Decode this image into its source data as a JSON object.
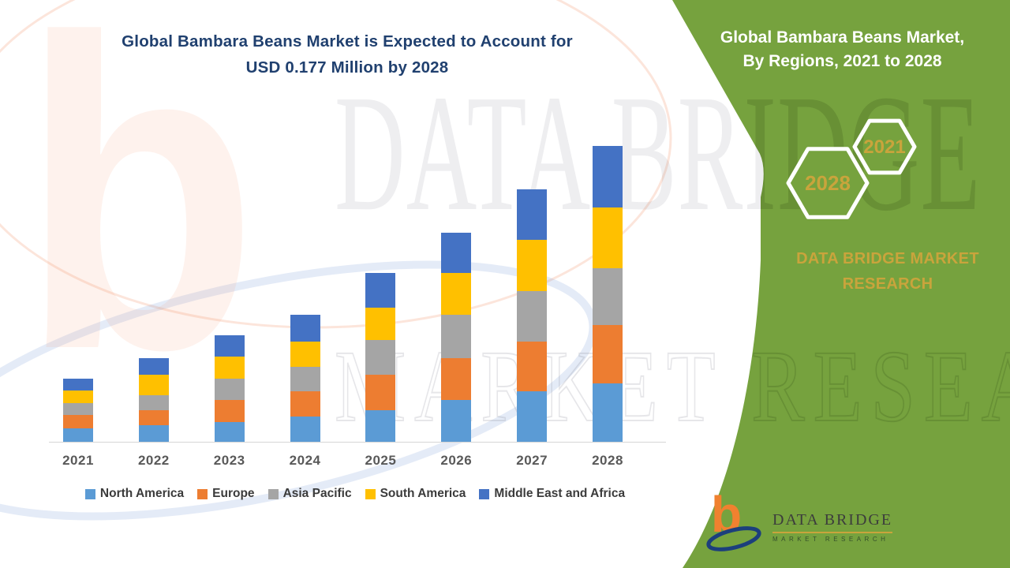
{
  "header": {
    "title_line1": "Global Bambara Beans Market is Expected to Account for",
    "title_line2": "USD 0.177 Million by 2028",
    "title_color": "#20406F"
  },
  "panel": {
    "title_line1": "Global Bambara Beans Market,",
    "title_line2": "By Regions, 2021 to 2028",
    "hexagon_top_label": "2021",
    "hexagon_bottom_label": "2028",
    "brand_line1": "DATA BRIDGE MARKET",
    "brand_line2": "RESEARCH",
    "background_color": "#76A23E",
    "accent_gold": "#C9A43C"
  },
  "chart_data": {
    "type": "bar",
    "stacked": true,
    "title": "Global Bambara Beans Market is Expected to Account for USD 0.177 Million by 2028",
    "unit": "USD Million",
    "categories": [
      "2021",
      "2022",
      "2023",
      "2024",
      "2025",
      "2026",
      "2027",
      "2028"
    ],
    "series": [
      {
        "name": "North America",
        "color": "#5B9BD5",
        "values": [
          0.008,
          0.01,
          0.012,
          0.015,
          0.019,
          0.025,
          0.03,
          0.035
        ]
      },
      {
        "name": "Europe",
        "color": "#ED7D31",
        "values": [
          0.008,
          0.009,
          0.013,
          0.015,
          0.021,
          0.025,
          0.03,
          0.035
        ]
      },
      {
        "name": "Asia Pacific",
        "color": "#A5A5A5",
        "values": [
          0.007,
          0.009,
          0.013,
          0.015,
          0.021,
          0.026,
          0.03,
          0.034
        ]
      },
      {
        "name": "South America",
        "color": "#FFC000",
        "values": [
          0.008,
          0.012,
          0.013,
          0.015,
          0.019,
          0.025,
          0.031,
          0.036
        ]
      },
      {
        "name": "Middle East and Africa",
        "color": "#4472C4",
        "values": [
          0.007,
          0.01,
          0.013,
          0.016,
          0.021,
          0.024,
          0.03,
          0.037
        ]
      }
    ],
    "totals_by_year": [
      0.038,
      0.05,
      0.064,
      0.076,
      0.101,
      0.125,
      0.151,
      0.177
    ],
    "ylim": [
      0,
      0.177
    ],
    "y_axis_visible": false,
    "gridlines": false,
    "legend_position": "bottom",
    "xlabel": "",
    "ylabel": ""
  },
  "logo": {
    "monogram": "b",
    "name": "DATA BRIDGE",
    "tagline": "MARKET RESEARCH"
  },
  "watermark": {
    "monogram": "b",
    "line1": "DATA BRIDGE",
    "line2": "MARKET RESEARCH"
  }
}
